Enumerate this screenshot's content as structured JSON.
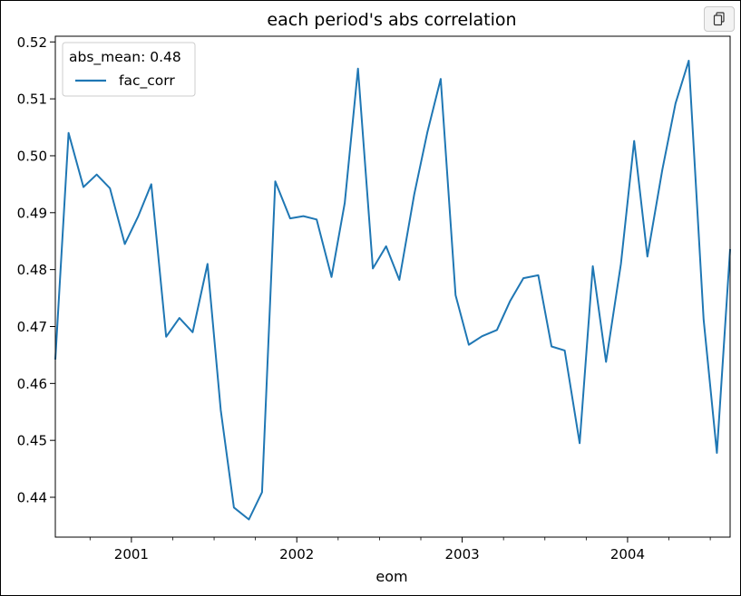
{
  "toolbar": {
    "copy_icon": "copy-icon"
  },
  "chart_data": {
    "type": "line",
    "title": "each period's abs correlation",
    "xlabel": "eom",
    "ylabel": "",
    "xlim": [
      2000.54,
      2004.62
    ],
    "ylim": [
      0.433,
      0.521
    ],
    "x_ticks": [
      {
        "value": 2001,
        "label": "2001"
      },
      {
        "value": 2002,
        "label": "2002"
      },
      {
        "value": 2003,
        "label": "2003"
      },
      {
        "value": 2004,
        "label": "2004"
      }
    ],
    "y_ticks": [
      0.44,
      0.45,
      0.46,
      0.47,
      0.48,
      0.49,
      0.5,
      0.51,
      0.52
    ],
    "y_tick_labels": [
      "0.44",
      "0.45",
      "0.46",
      "0.47",
      "0.48",
      "0.49",
      "0.50",
      "0.51",
      "0.52"
    ],
    "grid": false,
    "legend": {
      "title": "abs_mean: 0.48",
      "placement": "top-left"
    },
    "series": [
      {
        "name": "fac_corr",
        "color": "#1f77b4",
        "x": [
          2000.54,
          2000.62,
          2000.71,
          2000.79,
          2000.87,
          2000.96,
          2001.04,
          2001.12,
          2001.21,
          2001.29,
          2001.37,
          2001.46,
          2001.54,
          2001.62,
          2001.71,
          2001.79,
          2001.87,
          2001.96,
          2002.04,
          2002.12,
          2002.21,
          2002.29,
          2002.37,
          2002.46,
          2002.54,
          2002.62,
          2002.71,
          2002.79,
          2002.87,
          2002.96,
          2003.04,
          2003.12,
          2003.21,
          2003.29,
          2003.37,
          2003.46,
          2003.54,
          2003.62,
          2003.71,
          2003.79,
          2003.87,
          2003.96,
          2004.04,
          2004.12,
          2004.21,
          2004.29,
          2004.37,
          2004.46,
          2004.54,
          2004.62
        ],
        "values": [
          0.4642,
          0.504,
          0.4945,
          0.4967,
          0.4943,
          0.4845,
          0.4893,
          0.495,
          0.4682,
          0.4715,
          0.469,
          0.481,
          0.4553,
          0.4382,
          0.4361,
          0.4409,
          0.4955,
          0.489,
          0.4894,
          0.4888,
          0.4787,
          0.4917,
          0.5153,
          0.4802,
          0.4841,
          0.4782,
          0.4932,
          0.5042,
          0.5135,
          0.4755,
          0.4668,
          0.4683,
          0.4694,
          0.4745,
          0.4785,
          0.479,
          0.4665,
          0.4658,
          0.4495,
          0.4806,
          0.4638,
          0.481,
          0.5026,
          0.4823,
          0.4975,
          0.5092,
          0.5167,
          0.4712,
          0.4478,
          0.4836
        ]
      }
    ]
  }
}
